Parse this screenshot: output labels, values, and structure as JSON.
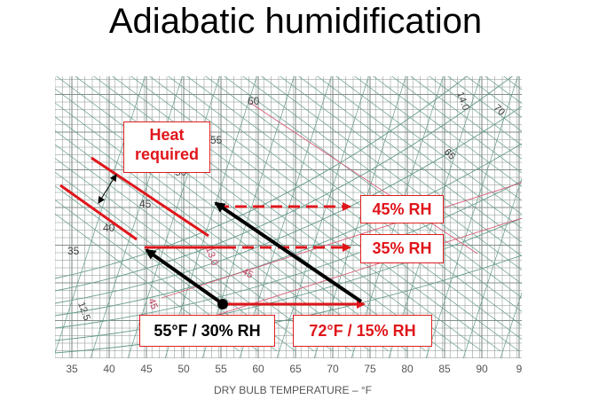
{
  "title": "Adiabatic humidification",
  "colors": {
    "red": "#e0161b",
    "black": "#000000",
    "grid": "#6f7c76",
    "curve": "#4c8a78",
    "pink": "#d04060"
  },
  "chart": {
    "x_axis_label": "DRY BULB TEMPERATURE – °F",
    "x_ticks": [
      "35",
      "40",
      "45",
      "50",
      "55",
      "60",
      "65",
      "70",
      "75",
      "80",
      "85",
      "90",
      "9"
    ],
    "wet_bulb_labels": [
      "60",
      "55",
      "50",
      "45",
      "40",
      "35"
    ],
    "chart_marks": [
      "14.0",
      "65",
      "70",
      "45",
      "13.0",
      "12.5",
      "45"
    ]
  },
  "labels": {
    "heat_required": "Heat required",
    "rh_45": "45% RH",
    "rh_35": "35% RH",
    "state_start": "55°F / 30% RH",
    "state_hot": "72°F / 15% RH"
  }
}
